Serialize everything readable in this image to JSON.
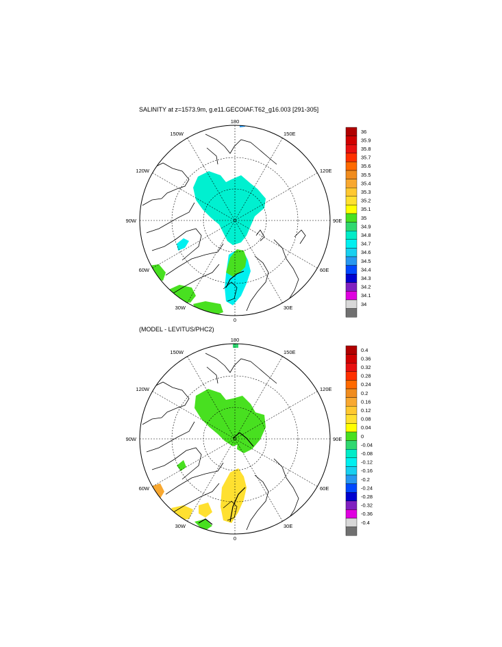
{
  "panel1": {
    "title": "SALINITY at z=1573.9m, g.e11.GECOIAF.T62_g16.003 [291-305]",
    "lon_labels": {
      "top": "180",
      "bottom": "0",
      "left": "90W",
      "right": "90E",
      "tl1": "150W",
      "tl2": "120W",
      "tr1": "150E",
      "tr2": "120E",
      "bl1": "60W",
      "bl2": "30W",
      "br1": "60E",
      "br2": "30E"
    },
    "colorbar": {
      "labels": [
        "36",
        "35.9",
        "35.8",
        "35.7",
        "35.6",
        "35.5",
        "35.4",
        "35.3",
        "35.2",
        "35.1",
        "35",
        "34.9",
        "34.8",
        "34.7",
        "34.6",
        "34.5",
        "34.4",
        "34.3",
        "34.2",
        "34.1",
        "34"
      ],
      "colors": [
        "#b00000",
        "#d00000",
        "#e81010",
        "#ff3000",
        "#ff6a00",
        "#f08c1e",
        "#f8a830",
        "#ffc830",
        "#ffe030",
        "#ffff00",
        "#48e020",
        "#30d870",
        "#00ecc8",
        "#00f0f0",
        "#18d0f0",
        "#2898f0",
        "#0048ff",
        "#0000d0",
        "#8020c0",
        "#e000e0",
        "#d8d8d8",
        "#707070"
      ]
    }
  },
  "panel2": {
    "title": "(MODEL - LEVITUS/PHC2)",
    "lon_labels": {
      "top": "180",
      "bottom": "0",
      "left": "90W",
      "right": "90E",
      "tl1": "150W",
      "tl2": "120W",
      "tr1": "150E",
      "tr2": "120E",
      "bl1": "60W",
      "bl2": "30W",
      "br1": "60E",
      "br2": "30E"
    },
    "colorbar": {
      "labels": [
        "0.4",
        "0.36",
        "0.32",
        "0.28",
        "0.24",
        "0.2",
        "0.16",
        "0.12",
        "0.08",
        "0.04",
        "0",
        "-0.04",
        "-0.08",
        "-0.12",
        "-0.16",
        "-0.2",
        "-0.24",
        "-0.28",
        "-0.32",
        "-0.36",
        "-0.4"
      ],
      "colors": [
        "#b00000",
        "#d00000",
        "#e81010",
        "#ff3000",
        "#ff6a00",
        "#f08c1e",
        "#f8a830",
        "#ffc830",
        "#ffe030",
        "#ffff00",
        "#48e020",
        "#30d870",
        "#00ecc8",
        "#00f0f0",
        "#18d0f0",
        "#2898f0",
        "#0048ff",
        "#0000d0",
        "#8020c0",
        "#e000e0",
        "#d8d8d8",
        "#707070"
      ]
    }
  }
}
